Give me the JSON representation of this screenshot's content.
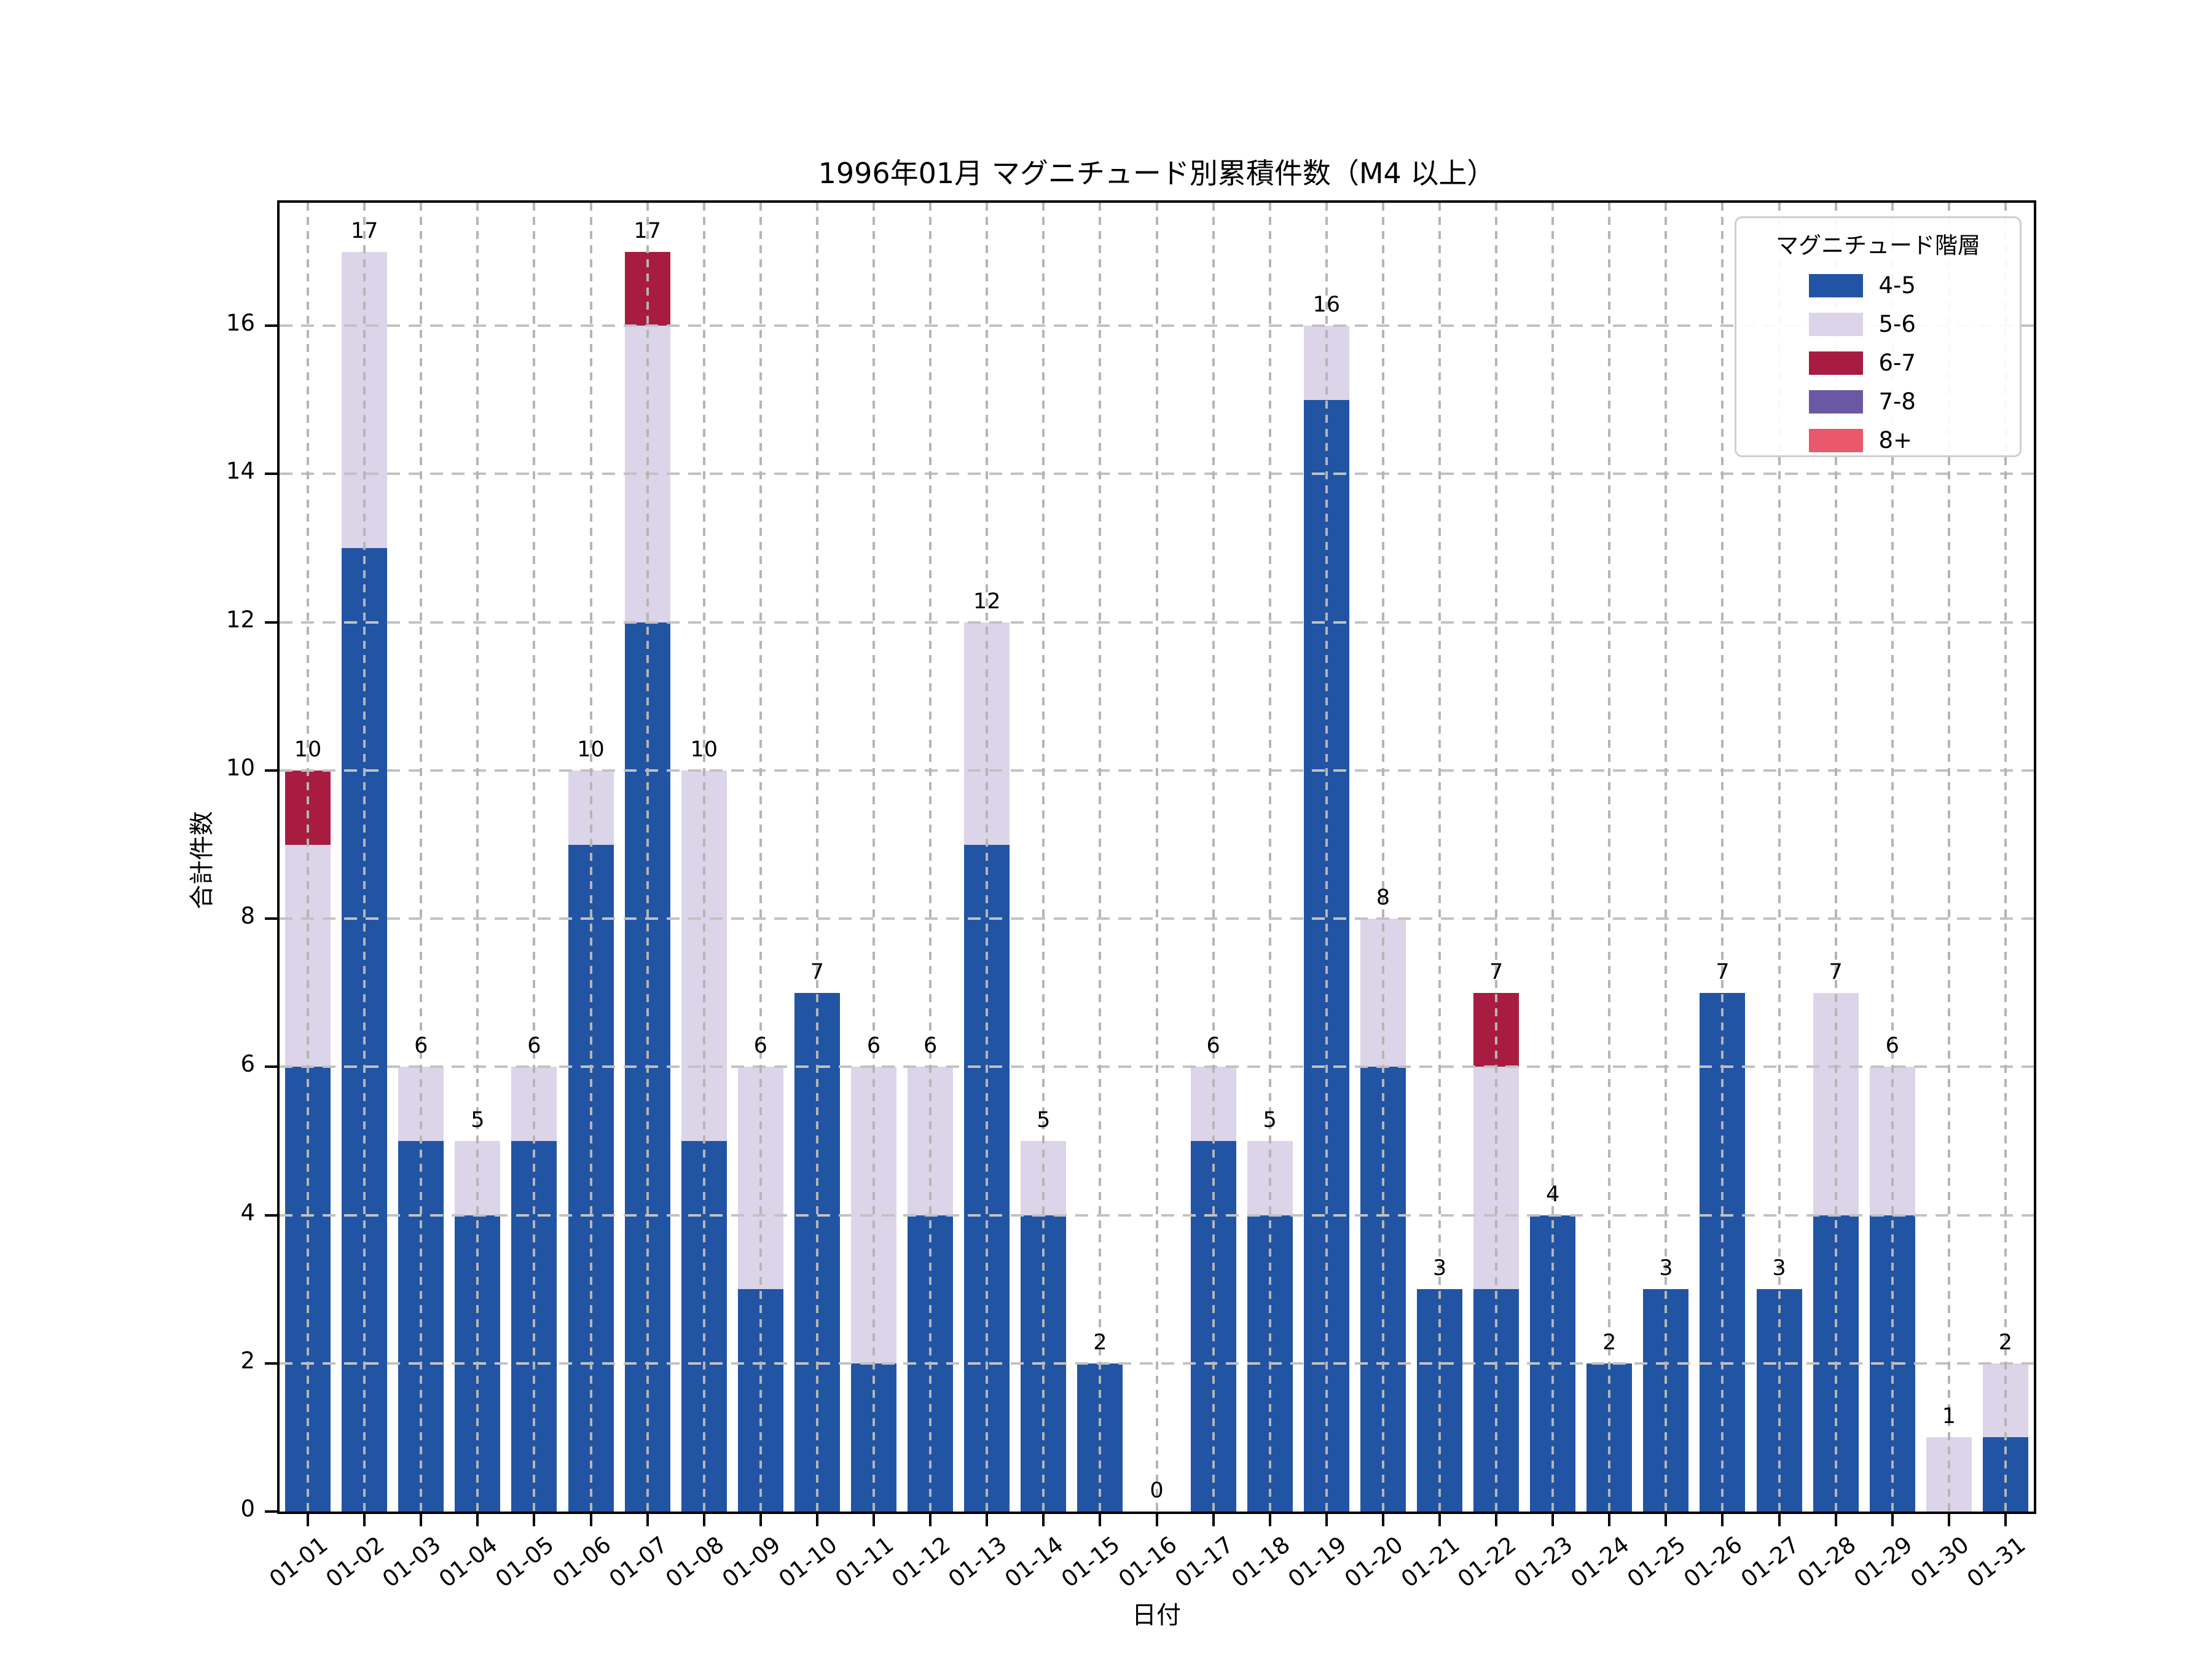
{
  "title": "1996年01月 マグニチュード別累積件数（M4 以上）",
  "axes": {
    "x_label": "日付",
    "y_label": "合計件数",
    "y_ticks": [
      0,
      2,
      4,
      6,
      8,
      10,
      12,
      14,
      16
    ]
  },
  "legend": {
    "title": "マグニチュード階層",
    "entries": [
      {
        "label": "4-5",
        "color": "#2154a3"
      },
      {
        "label": "5-6",
        "color": "#dcd4e8"
      },
      {
        "label": "6-7",
        "color": "#a81c42"
      },
      {
        "label": "7-8",
        "color": "#6b58a5"
      },
      {
        "label": "8+",
        "color": "#e9586b"
      }
    ]
  },
  "chart_data": {
    "type": "bar",
    "stacked": true,
    "title": "1996年01月 マグニチュード別累積件数（M4 以上）",
    "xlabel": "日付",
    "ylabel": "合計件数",
    "ylim": [
      0,
      17.66
    ],
    "grid": true,
    "legend_position": "upper right",
    "categories": [
      "01-01",
      "01-02",
      "01-03",
      "01-04",
      "01-05",
      "01-06",
      "01-07",
      "01-08",
      "01-09",
      "01-10",
      "01-11",
      "01-12",
      "01-13",
      "01-14",
      "01-15",
      "01-16",
      "01-17",
      "01-18",
      "01-19",
      "01-20",
      "01-21",
      "01-22",
      "01-23",
      "01-24",
      "01-25",
      "01-26",
      "01-27",
      "01-28",
      "01-29",
      "01-30",
      "01-31"
    ],
    "series": [
      {
        "name": "4-5",
        "color": "#2154a3",
        "values": [
          6,
          13,
          5,
          4,
          5,
          9,
          12,
          5,
          3,
          7,
          2,
          4,
          9,
          4,
          2,
          0,
          5,
          4,
          15,
          6,
          3,
          3,
          4,
          2,
          3,
          7,
          3,
          4,
          4,
          0,
          1
        ]
      },
      {
        "name": "5-6",
        "color": "#dcd4e8",
        "values": [
          3,
          4,
          1,
          1,
          1,
          1,
          4,
          5,
          3,
          0,
          4,
          2,
          3,
          1,
          0,
          0,
          1,
          1,
          1,
          2,
          0,
          3,
          0,
          0,
          0,
          0,
          0,
          3,
          2,
          1,
          1
        ]
      },
      {
        "name": "6-7",
        "color": "#a81c42",
        "values": [
          1,
          0,
          0,
          0,
          0,
          0,
          1,
          0,
          0,
          0,
          0,
          0,
          0,
          0,
          0,
          0,
          0,
          0,
          0,
          0,
          0,
          1,
          0,
          0,
          0,
          0,
          0,
          0,
          0,
          0,
          0
        ]
      },
      {
        "name": "7-8",
        "color": "#6b58a5",
        "values": [
          0,
          0,
          0,
          0,
          0,
          0,
          0,
          0,
          0,
          0,
          0,
          0,
          0,
          0,
          0,
          0,
          0,
          0,
          0,
          0,
          0,
          0,
          0,
          0,
          0,
          0,
          0,
          0,
          0,
          0,
          0
        ]
      },
      {
        "name": "8+",
        "color": "#e9586b",
        "values": [
          0,
          0,
          0,
          0,
          0,
          0,
          0,
          0,
          0,
          0,
          0,
          0,
          0,
          0,
          0,
          0,
          0,
          0,
          0,
          0,
          0,
          0,
          0,
          0,
          0,
          0,
          0,
          0,
          0,
          0,
          0
        ]
      }
    ],
    "totals": [
      10,
      17,
      6,
      5,
      6,
      10,
      17,
      10,
      6,
      7,
      6,
      6,
      12,
      5,
      2,
      0,
      6,
      5,
      16,
      8,
      3,
      7,
      4,
      2,
      3,
      7,
      3,
      7,
      6,
      1,
      2
    ]
  }
}
